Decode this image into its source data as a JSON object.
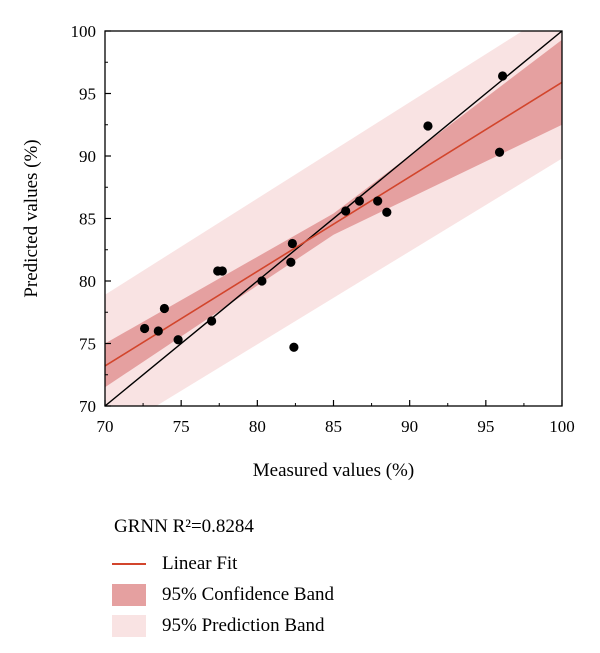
{
  "chart_data": {
    "type": "scatter",
    "xlabel": "Measured values (%)",
    "ylabel": "Predicted values (%)",
    "xlim": [
      70,
      100
    ],
    "ylim": [
      70,
      100
    ],
    "x_ticks": [
      70,
      75,
      80,
      85,
      90,
      95,
      100
    ],
    "y_ticks": [
      70,
      75,
      80,
      85,
      90,
      95,
      100
    ],
    "grid": false,
    "legend_position": "below",
    "points": [
      {
        "x": 72.6,
        "y": 76.2
      },
      {
        "x": 73.5,
        "y": 76.0
      },
      {
        "x": 73.9,
        "y": 77.8
      },
      {
        "x": 74.8,
        "y": 75.3
      },
      {
        "x": 77.0,
        "y": 76.8
      },
      {
        "x": 77.4,
        "y": 80.8
      },
      {
        "x": 77.7,
        "y": 80.8
      },
      {
        "x": 80.3,
        "y": 80.0
      },
      {
        "x": 82.2,
        "y": 81.5
      },
      {
        "x": 82.3,
        "y": 83.0
      },
      {
        "x": 82.4,
        "y": 74.7
      },
      {
        "x": 85.8,
        "y": 85.6
      },
      {
        "x": 86.7,
        "y": 86.4
      },
      {
        "x": 87.9,
        "y": 86.4
      },
      {
        "x": 88.5,
        "y": 85.5
      },
      {
        "x": 91.2,
        "y": 92.4
      },
      {
        "x": 95.9,
        "y": 90.3
      },
      {
        "x": 96.1,
        "y": 96.4
      }
    ],
    "identity_line": {
      "from": [
        70,
        70
      ],
      "to": [
        100,
        100
      ]
    },
    "linear_fit": {
      "from": [
        70,
        73.2
      ],
      "to": [
        100,
        95.9
      ]
    },
    "confidence_band": [
      {
        "x": 70,
        "lo": 71.5,
        "hi": 75.0
      },
      {
        "x": 85,
        "lo": 83.7,
        "hi": 85.4
      },
      {
        "x": 100,
        "lo": 92.5,
        "hi": 99.3
      }
    ],
    "prediction_band": [
      {
        "x": 70,
        "lo": 67.5,
        "hi": 78.9
      },
      {
        "x": 100,
        "lo": 89.8,
        "hi": 102.0
      }
    ],
    "colors": {
      "points": "#000000",
      "fit": "#d2452c",
      "identity": "#000000",
      "confidence": "#e5a0a0",
      "prediction": "#f9e3e3"
    },
    "legend": {
      "title": "GRNN R²=0.8284",
      "entries": [
        {
          "label": "Linear Fit",
          "kind": "line"
        },
        {
          "label": "95% Confidence Band",
          "kind": "confidence"
        },
        {
          "label": "95% Prediction Band",
          "kind": "prediction"
        }
      ]
    }
  }
}
